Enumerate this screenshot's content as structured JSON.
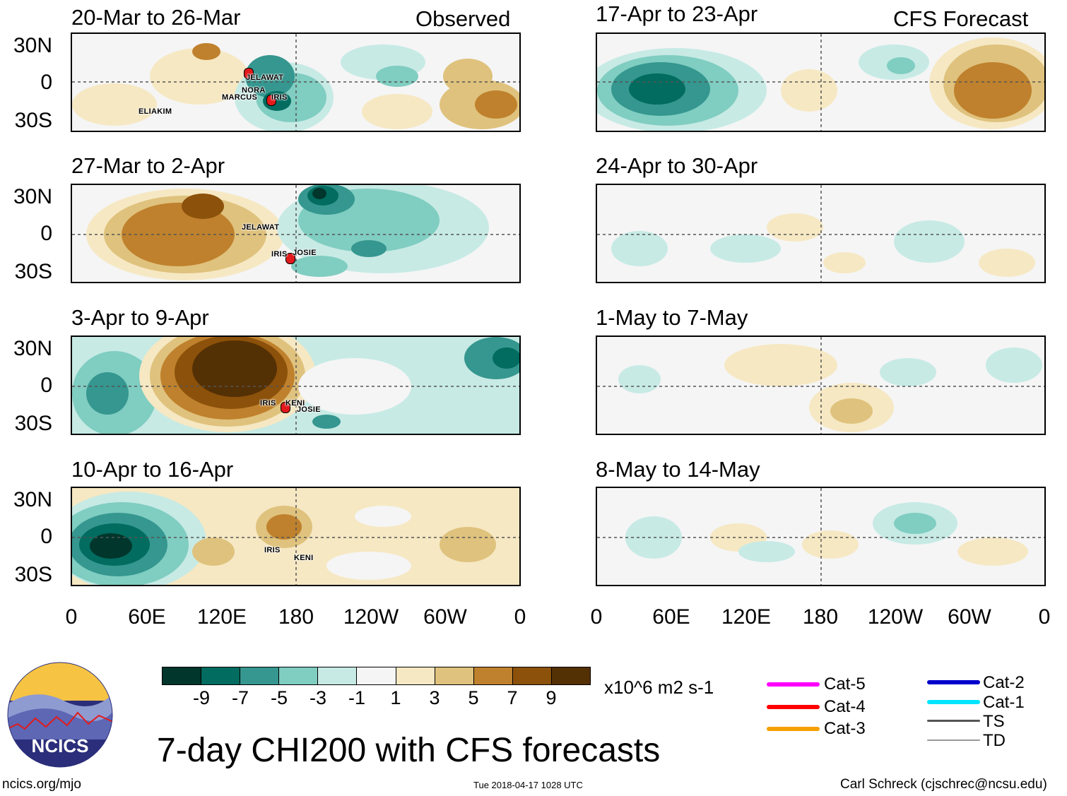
{
  "panels": {
    "p0": {
      "title": "20-Mar to 26-Mar",
      "tag": "Observed"
    },
    "p1": {
      "title": "27-Mar to 2-Apr",
      "tag": ""
    },
    "p2": {
      "title": "3-Apr to 9-Apr",
      "tag": ""
    },
    "p3": {
      "title": "10-Apr to 16-Apr",
      "tag": ""
    },
    "p4": {
      "title": "17-Apr to 23-Apr",
      "tag": "CFS Forecast"
    },
    "p5": {
      "title": "24-Apr to 30-Apr",
      "tag": ""
    },
    "p6": {
      "title": "1-May to 7-May",
      "tag": ""
    },
    "p7": {
      "title": "8-May to 14-May",
      "tag": ""
    }
  },
  "lat_labels": [
    "30N",
    "0",
    "30S"
  ],
  "lon_labels": [
    "0",
    "60E",
    "120E",
    "180",
    "120W",
    "60W",
    "0"
  ],
  "storms": {
    "p0": [
      "JELAWAT",
      "NORA",
      "MARCUS",
      "IRIS",
      "ELIAKIM"
    ],
    "p1": [
      "JELAWAT",
      "IRIS",
      "JOSIE"
    ],
    "p2": [
      "IRIS",
      "KENI",
      "JOSIE"
    ],
    "p3": [
      "IRIS",
      "KENI"
    ]
  },
  "colorbar": {
    "labels": [
      "-9",
      "-7",
      "-5",
      "-3",
      "-1",
      "1",
      "3",
      "5",
      "7",
      "9"
    ],
    "colors": [
      "#01362c",
      "#016c5f",
      "#35978f",
      "#80cdc1",
      "#c7eae5",
      "#f5f5f5",
      "#f6e8c3",
      "#dfc27d",
      "#bf812d",
      "#8c510a",
      "#543005"
    ],
    "units": "x10^6 m2 s-1"
  },
  "legend": {
    "left": [
      {
        "label": "Cat-5",
        "color": "#ff00ff"
      },
      {
        "label": "Cat-4",
        "color": "#ff0000"
      },
      {
        "label": "Cat-3",
        "color": "#f5a000"
      }
    ],
    "right": [
      {
        "label": "Cat-2",
        "color": "#0000cc"
      },
      {
        "label": "Cat-1",
        "color": "#00e5ff"
      },
      {
        "label": "TS",
        "color": "#555555"
      },
      {
        "label": "TD",
        "color": "#999999"
      }
    ]
  },
  "logo_text": "NCICS",
  "main_title": "7-day CHI200 with CFS forecasts",
  "footer": {
    "left": "ncics.org/mjo",
    "center": "Tue 2018-04-17 1028 UTC",
    "right": "Carl Schreck (cjschrec@ncsu.edu)"
  }
}
